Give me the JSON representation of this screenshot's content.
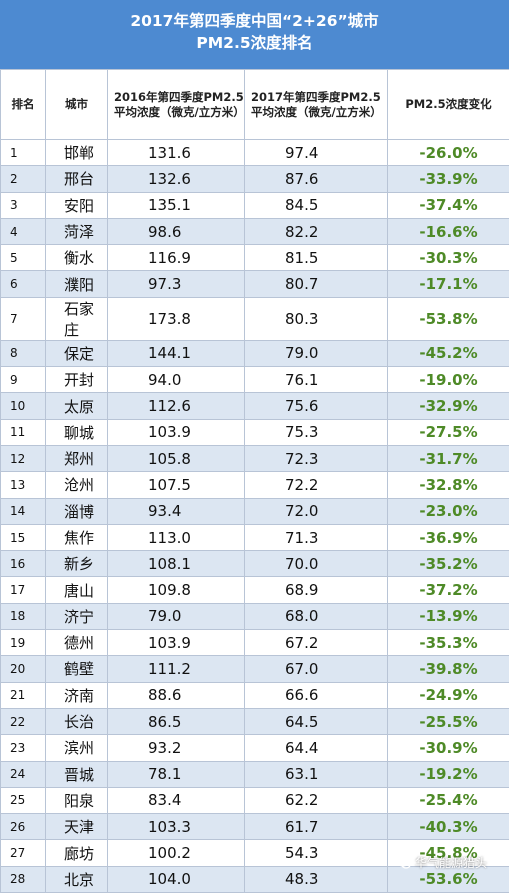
{
  "title_line1": "2017年第四季度中国“2+26”城市",
  "title_line2": "PM2.5浓度排名",
  "headers": {
    "rank": "排名",
    "city": "城市",
    "v2016": "2016年第四季度PM2.5平均浓度（微克/立方米）",
    "v2017": "2017年第四季度PM2.5平均浓度（微克/立方米）",
    "change": "PM2.5浓度变化"
  },
  "rows": [
    {
      "rank": "1",
      "city": "邯郸",
      "v2016": "131.6",
      "v2017": "97.4",
      "change": "-26.0%"
    },
    {
      "rank": "2",
      "city": "邢台",
      "v2016": "132.6",
      "v2017": "87.6",
      "change": "-33.9%"
    },
    {
      "rank": "3",
      "city": "安阳",
      "v2016": "135.1",
      "v2017": "84.5",
      "change": "-37.4%"
    },
    {
      "rank": "4",
      "city": "菏泽",
      "v2016": "98.6",
      "v2017": "82.2",
      "change": "-16.6%"
    },
    {
      "rank": "5",
      "city": "衡水",
      "v2016": "116.9",
      "v2017": "81.5",
      "change": "-30.3%"
    },
    {
      "rank": "6",
      "city": "濮阳",
      "v2016": "97.3",
      "v2017": "80.7",
      "change": "-17.1%"
    },
    {
      "rank": "7",
      "city": "石家庄",
      "v2016": "173.8",
      "v2017": "80.3",
      "change": "-53.8%"
    },
    {
      "rank": "8",
      "city": "保定",
      "v2016": "144.1",
      "v2017": "79.0",
      "change": "-45.2%"
    },
    {
      "rank": "9",
      "city": "开封",
      "v2016": "94.0",
      "v2017": "76.1",
      "change": "-19.0%"
    },
    {
      "rank": "10",
      "city": "太原",
      "v2016": "112.6",
      "v2017": "75.6",
      "change": "-32.9%"
    },
    {
      "rank": "11",
      "city": "聊城",
      "v2016": "103.9",
      "v2017": "75.3",
      "change": "-27.5%"
    },
    {
      "rank": "12",
      "city": "郑州",
      "v2016": "105.8",
      "v2017": "72.3",
      "change": "-31.7%"
    },
    {
      "rank": "13",
      "city": "沧州",
      "v2016": "107.5",
      "v2017": "72.2",
      "change": "-32.8%"
    },
    {
      "rank": "14",
      "city": "淄博",
      "v2016": "93.4",
      "v2017": "72.0",
      "change": "-23.0%"
    },
    {
      "rank": "15",
      "city": "焦作",
      "v2016": "113.0",
      "v2017": "71.3",
      "change": "-36.9%"
    },
    {
      "rank": "16",
      "city": "新乡",
      "v2016": "108.1",
      "v2017": "70.0",
      "change": "-35.2%"
    },
    {
      "rank": "17",
      "city": "唐山",
      "v2016": "109.8",
      "v2017": "68.9",
      "change": "-37.2%"
    },
    {
      "rank": "18",
      "city": "济宁",
      "v2016": "79.0",
      "v2017": "68.0",
      "change": "-13.9%"
    },
    {
      "rank": "19",
      "city": "德州",
      "v2016": "103.9",
      "v2017": "67.2",
      "change": "-35.3%"
    },
    {
      "rank": "20",
      "city": "鹤壁",
      "v2016": "111.2",
      "v2017": "67.0",
      "change": "-39.8%"
    },
    {
      "rank": "21",
      "city": "济南",
      "v2016": "88.6",
      "v2017": "66.6",
      "change": "-24.9%"
    },
    {
      "rank": "22",
      "city": "长治",
      "v2016": "86.5",
      "v2017": "64.5",
      "change": "-25.5%"
    },
    {
      "rank": "23",
      "city": "滨州",
      "v2016": "93.2",
      "v2017": "64.4",
      "change": "-30.9%"
    },
    {
      "rank": "24",
      "city": "晋城",
      "v2016": "78.1",
      "v2017": "63.1",
      "change": "-19.2%"
    },
    {
      "rank": "25",
      "city": "阳泉",
      "v2016": "83.4",
      "v2017": "62.2",
      "change": "-25.4%"
    },
    {
      "rank": "26",
      "city": "天津",
      "v2016": "103.3",
      "v2017": "61.7",
      "change": "-40.3%"
    },
    {
      "rank": "27",
      "city": "廊坊",
      "v2016": "100.2",
      "v2017": "54.3",
      "change": "-45.8%"
    },
    {
      "rank": "28",
      "city": "北京",
      "v2016": "104.0",
      "v2017": "48.3",
      "change": "-53.6%"
    }
  ],
  "watermark": "华气能源猎头",
  "colors": {
    "header_bg": "#4d8ad1",
    "row_alt": "#dce6f2",
    "change_text": "#4e8a27"
  }
}
